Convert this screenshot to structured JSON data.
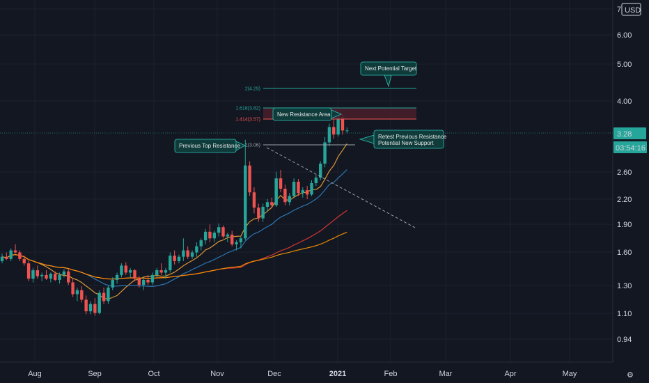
{
  "chart_data": {
    "type": "candlestick",
    "currency": "USD",
    "y_scale": "log",
    "ylim": [
      0.8,
      7.2
    ],
    "y_ticks": [
      "7.00",
      "6.00",
      "5.00",
      "4.00",
      "2.60",
      "2.20",
      "1.90",
      "1.60",
      "1.30",
      "1.10",
      "0.94"
    ],
    "x_ticks": [
      "Aug",
      "Sep",
      "Oct",
      "Nov",
      "Dec",
      "2021",
      "Feb",
      "Mar",
      "Apr",
      "May"
    ],
    "current_price": "3.28",
    "countdown": "03:54:16",
    "candles": [
      [
        1.48,
        1.55,
        1.46,
        1.52
      ],
      [
        1.52,
        1.56,
        1.49,
        1.5
      ],
      [
        1.5,
        1.6,
        1.48,
        1.58
      ],
      [
        1.58,
        1.64,
        1.55,
        1.56
      ],
      [
        1.56,
        1.58,
        1.48,
        1.5
      ],
      [
        1.5,
        1.53,
        1.44,
        1.46
      ],
      [
        1.46,
        1.48,
        1.31,
        1.33
      ],
      [
        1.33,
        1.42,
        1.3,
        1.4
      ],
      [
        1.4,
        1.44,
        1.33,
        1.35
      ],
      [
        1.35,
        1.38,
        1.31,
        1.36
      ],
      [
        1.36,
        1.4,
        1.32,
        1.33
      ],
      [
        1.33,
        1.38,
        1.3,
        1.37
      ],
      [
        1.37,
        1.39,
        1.31,
        1.32
      ],
      [
        1.32,
        1.38,
        1.29,
        1.36
      ],
      [
        1.36,
        1.41,
        1.34,
        1.39
      ],
      [
        1.39,
        1.41,
        1.28,
        1.3
      ],
      [
        1.3,
        1.33,
        1.19,
        1.21
      ],
      [
        1.21,
        1.26,
        1.16,
        1.24
      ],
      [
        1.24,
        1.27,
        1.15,
        1.17
      ],
      [
        1.17,
        1.2,
        1.07,
        1.09
      ],
      [
        1.09,
        1.16,
        1.07,
        1.14
      ],
      [
        1.14,
        1.18,
        1.06,
        1.08
      ],
      [
        1.08,
        1.24,
        1.07,
        1.22
      ],
      [
        1.22,
        1.26,
        1.14,
        1.16
      ],
      [
        1.16,
        1.28,
        1.14,
        1.26
      ],
      [
        1.26,
        1.34,
        1.24,
        1.32
      ],
      [
        1.32,
        1.38,
        1.29,
        1.36
      ],
      [
        1.36,
        1.46,
        1.34,
        1.44
      ],
      [
        1.44,
        1.47,
        1.36,
        1.38
      ],
      [
        1.38,
        1.42,
        1.34,
        1.4
      ],
      [
        1.4,
        1.41,
        1.31,
        1.33
      ],
      [
        1.33,
        1.35,
        1.26,
        1.28
      ],
      [
        1.28,
        1.34,
        1.24,
        1.32
      ],
      [
        1.32,
        1.36,
        1.28,
        1.3
      ],
      [
        1.3,
        1.38,
        1.28,
        1.36
      ],
      [
        1.36,
        1.42,
        1.34,
        1.4
      ],
      [
        1.4,
        1.46,
        1.36,
        1.38
      ],
      [
        1.38,
        1.42,
        1.33,
        1.4
      ],
      [
        1.4,
        1.56,
        1.38,
        1.53
      ],
      [
        1.53,
        1.58,
        1.45,
        1.48
      ],
      [
        1.48,
        1.54,
        1.46,
        1.52
      ],
      [
        1.52,
        1.7,
        1.48,
        1.58
      ],
      [
        1.58,
        1.62,
        1.5,
        1.52
      ],
      [
        1.52,
        1.58,
        1.5,
        1.56
      ],
      [
        1.56,
        1.66,
        1.52,
        1.62
      ],
      [
        1.62,
        1.7,
        1.58,
        1.68
      ],
      [
        1.68,
        1.8,
        1.64,
        1.77
      ],
      [
        1.77,
        1.85,
        1.66,
        1.7
      ],
      [
        1.7,
        1.78,
        1.66,
        1.76
      ],
      [
        1.76,
        1.86,
        1.72,
        1.82
      ],
      [
        1.82,
        1.84,
        1.7,
        1.72
      ],
      [
        1.72,
        1.76,
        1.66,
        1.74
      ],
      [
        1.74,
        1.78,
        1.62,
        1.64
      ],
      [
        1.64,
        1.68,
        1.58,
        1.66
      ],
      [
        1.66,
        1.72,
        1.6,
        1.7
      ],
      [
        1.7,
        3.1,
        1.68,
        2.65
      ],
      [
        2.65,
        2.72,
        2.2,
        2.25
      ],
      [
        2.25,
        2.32,
        1.98,
        2.05
      ],
      [
        2.05,
        2.1,
        1.88,
        1.92
      ],
      [
        1.92,
        2.1,
        1.88,
        2.06
      ],
      [
        2.06,
        2.16,
        2.0,
        2.12
      ],
      [
        2.12,
        2.18,
        2.04,
        2.08
      ],
      [
        2.08,
        2.55,
        2.06,
        2.45
      ],
      [
        2.45,
        2.58,
        2.25,
        2.3
      ],
      [
        2.3,
        2.36,
        2.08,
        2.12
      ],
      [
        2.12,
        2.24,
        2.08,
        2.2
      ],
      [
        2.2,
        2.45,
        2.18,
        2.4
      ],
      [
        2.4,
        2.44,
        2.2,
        2.24
      ],
      [
        2.24,
        2.32,
        2.18,
        2.28
      ],
      [
        2.28,
        2.34,
        2.16,
        2.22
      ],
      [
        2.22,
        2.42,
        2.2,
        2.38
      ],
      [
        2.38,
        2.5,
        2.34,
        2.46
      ],
      [
        2.46,
        2.72,
        2.42,
        2.68
      ],
      [
        2.68,
        3.15,
        2.62,
        3.05
      ],
      [
        3.05,
        3.42,
        2.98,
        3.35
      ],
      [
        3.35,
        3.58,
        3.12,
        3.2
      ],
      [
        3.2,
        3.66,
        3.16,
        3.55
      ],
      [
        3.55,
        3.62,
        3.2,
        3.28
      ],
      [
        3.28,
        3.34,
        3.22,
        3.28
      ]
    ],
    "moving_averages": [
      {
        "color": "#f2a53a",
        "length_bars": 9
      },
      {
        "color": "#2f7fc1",
        "length_bars": 20
      },
      {
        "color": "#e53935",
        "length_bars": 50
      },
      {
        "color": "#ff9800",
        "length_bars": 100
      }
    ],
    "fib_levels": [
      {
        "label": "2(4.29)",
        "price": 4.29,
        "color": "#26a69a"
      },
      {
        "label": "1.618(3.82)",
        "price": 3.82,
        "color": "#26a69a"
      },
      {
        "label": "1.414(3.57)",
        "price": 3.57,
        "color": "#ef5350"
      },
      {
        "label": "1(3.06)",
        "price": 3.06,
        "color": "#9aa0a6"
      }
    ],
    "annotations": [
      {
        "text": "Next Potential Target"
      },
      {
        "text": "New Resistance Area"
      },
      {
        "text": "Previous Top Resistance"
      },
      {
        "text": "Retest Previous Resistance"
      },
      {
        "text": "Potential New Support"
      }
    ],
    "colors": {
      "up": "#26a69a",
      "down": "#ef5350",
      "background": "#131722",
      "grid": "#1e222d",
      "price_badge": "#26a69a",
      "annotation_bg": "#0f3b3b",
      "resistance_zone": "#4a1f2c"
    }
  }
}
